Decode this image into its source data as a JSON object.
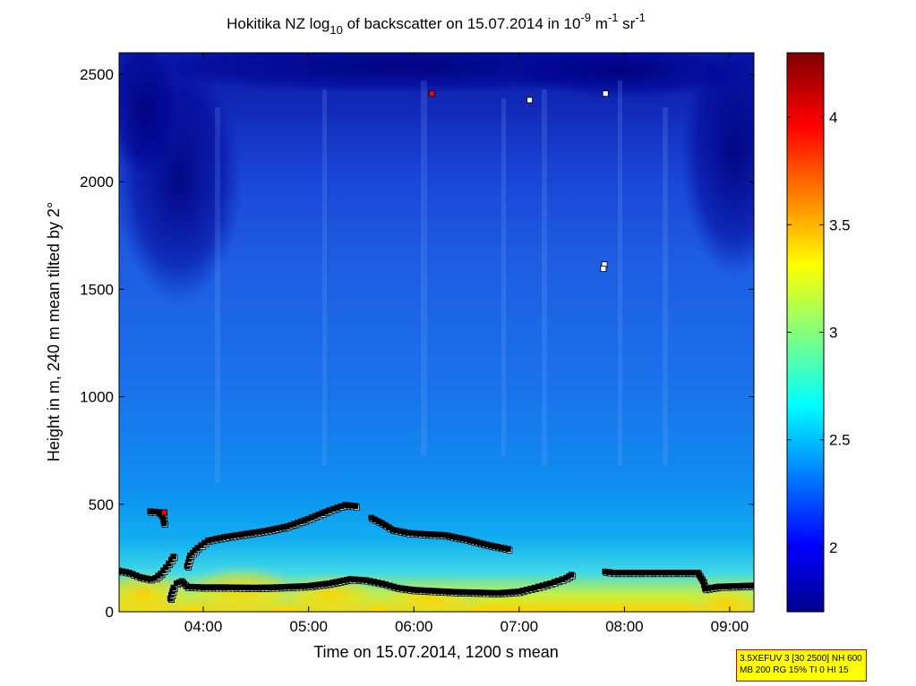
{
  "chart_data": {
    "type": "heatmap",
    "title": {
      "prefix": "Hokitika NZ log",
      "log_base": "10",
      "middle": " of backscatter on 15.07.2014 in 10",
      "exp1": "-9",
      "unit1": " m",
      "exp2": "-1",
      "unit2": " sr",
      "exp3": "-1"
    },
    "xlabel": "Time on 15.07.2014, 1200 s mean",
    "ylabel": "Height in m, 240 m mean tilted by 2°",
    "xlim_hours": [
      3.2,
      9.23
    ],
    "ylim": [
      0,
      2600
    ],
    "x_ticks": [
      {
        "value": 4,
        "label": "04:00"
      },
      {
        "value": 5,
        "label": "05:00"
      },
      {
        "value": 6,
        "label": "06:00"
      },
      {
        "value": 7,
        "label": "07:00"
      },
      {
        "value": 8,
        "label": "08:00"
      },
      {
        "value": 9,
        "label": "09:00"
      }
    ],
    "y_ticks": [
      {
        "value": 0,
        "label": "0"
      },
      {
        "value": 500,
        "label": "500"
      },
      {
        "value": 1000,
        "label": "1000"
      },
      {
        "value": 1500,
        "label": "1500"
      },
      {
        "value": 2000,
        "label": "2000"
      },
      {
        "value": 2500,
        "label": "2500"
      }
    ],
    "colorbar": {
      "range": [
        1.7,
        4.3
      ],
      "ticks": [
        {
          "value": 2,
          "label": "2"
        },
        {
          "value": 2.5,
          "label": "2.5"
        },
        {
          "value": 3,
          "label": "3"
        },
        {
          "value": 3.5,
          "label": "3.5"
        },
        {
          "value": 4,
          "label": "4"
        }
      ]
    },
    "colors": {
      "dark_blue": "#00008f",
      "background_blue": "#1e64e6",
      "marker_edge": "#000000",
      "marker_white": "#ffffff",
      "marker_red": "#ff0000",
      "marker_cyan": "#5fe4f0"
    },
    "layers": [
      {
        "name": "lower layer",
        "points": [
          [
            3.2,
            190
          ],
          [
            3.3,
            180
          ],
          [
            3.4,
            160
          ],
          [
            3.5,
            150
          ],
          [
            3.55,
            155
          ],
          [
            3.6,
            175
          ],
          [
            3.65,
            205
          ],
          [
            3.7,
            240
          ],
          [
            3.72,
            255
          ]
        ]
      },
      {
        "name": "surface layer",
        "points": [
          [
            3.69,
            60
          ],
          [
            3.72,
            110
          ],
          [
            3.75,
            130
          ],
          [
            3.8,
            140
          ],
          [
            3.85,
            115
          ],
          [
            4.0,
            112
          ],
          [
            4.2,
            112
          ],
          [
            4.5,
            110
          ],
          [
            4.7,
            112
          ],
          [
            5.0,
            118
          ],
          [
            5.2,
            130
          ],
          [
            5.4,
            150
          ],
          [
            5.55,
            145
          ],
          [
            5.7,
            130
          ],
          [
            5.85,
            110
          ],
          [
            6.0,
            100
          ],
          [
            6.2,
            95
          ],
          [
            6.4,
            90
          ],
          [
            6.6,
            88
          ],
          [
            6.8,
            85
          ],
          [
            7.0,
            92
          ],
          [
            7.15,
            110
          ],
          [
            7.3,
            130
          ],
          [
            7.45,
            155
          ],
          [
            7.5,
            170
          ]
        ]
      },
      {
        "name": "rising residual layer",
        "points": [
          [
            3.85,
            210
          ],
          [
            3.88,
            260
          ],
          [
            3.95,
            295
          ],
          [
            4.05,
            330
          ],
          [
            4.2,
            345
          ],
          [
            4.4,
            360
          ],
          [
            4.6,
            375
          ],
          [
            4.8,
            395
          ],
          [
            5.0,
            430
          ],
          [
            5.2,
            470
          ],
          [
            5.35,
            495
          ],
          [
            5.45,
            490
          ]
        ]
      },
      {
        "name": "descending afternoon layer",
        "points": [
          [
            5.6,
            435
          ],
          [
            5.7,
            410
          ],
          [
            5.8,
            380
          ],
          [
            5.95,
            365
          ],
          [
            6.1,
            360
          ],
          [
            6.3,
            355
          ],
          [
            6.5,
            335
          ],
          [
            6.7,
            310
          ],
          [
            6.9,
            290
          ]
        ]
      },
      {
        "name": "late layer",
        "points": [
          [
            7.82,
            185
          ],
          [
            7.9,
            180
          ],
          [
            8.2,
            180
          ],
          [
            8.5,
            180
          ],
          [
            8.7,
            180
          ],
          [
            8.75,
            140
          ],
          [
            8.77,
            105
          ],
          [
            8.9,
            115
          ],
          [
            9.1,
            118
          ],
          [
            9.23,
            120
          ]
        ]
      },
      {
        "name": "elevated segment",
        "points": [
          [
            3.5,
            465
          ],
          [
            3.58,
            462
          ],
          [
            3.62,
            440
          ],
          [
            3.63,
            410
          ]
        ]
      }
    ],
    "isolated_points": [
      {
        "x": 6.17,
        "y": 2410,
        "color": "red"
      },
      {
        "x": 7.1,
        "y": 2380,
        "color": "white"
      },
      {
        "x": 7.82,
        "y": 2410,
        "color": "white"
      },
      {
        "x": 7.81,
        "y": 1615,
        "color": "white"
      },
      {
        "x": 7.8,
        "y": 1595,
        "color": "white"
      },
      {
        "x": 3.63,
        "y": 462,
        "color": "red"
      }
    ]
  },
  "info_box": {
    "line1": "3.5XEFUV 3 [30 2500] NH 600",
    "line2": "MB 200 RG 15% TI 0 HI 15"
  }
}
